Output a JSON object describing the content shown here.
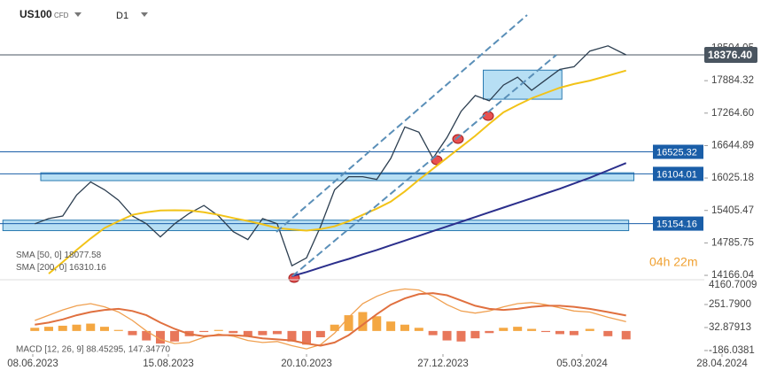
{
  "header": {
    "symbol": "US100",
    "kind": "CFD",
    "timeframe": "D1"
  },
  "countdown": "04h 22m",
  "chart_data": [
    {
      "type": "line",
      "x": [
        "2023-06-09",
        "2023-06-16",
        "2023-06-23",
        "2023-06-30",
        "2023-07-07",
        "2023-07-14",
        "2023-07-21",
        "2023-07-28",
        "2023-08-04",
        "2023-08-11",
        "2023-08-18",
        "2023-08-25",
        "2023-09-01",
        "2023-09-08",
        "2023-09-15",
        "2023-09-22",
        "2023-09-29",
        "2023-10-06",
        "2023-10-13",
        "2023-10-20",
        "2023-10-27",
        "2023-11-03",
        "2023-11-10",
        "2023-11-17",
        "2023-11-24",
        "2023-12-01",
        "2023-12-08",
        "2023-12-15",
        "2023-12-22",
        "2023-12-29",
        "2024-01-05",
        "2024-01-12",
        "2024-01-19",
        "2024-01-26",
        "2024-02-02",
        "2024-02-09",
        "2024-02-16",
        "2024-02-23",
        "2024-03-01",
        "2024-03-08",
        "2024-03-15",
        "2024-03-22"
      ],
      "series": [
        {
          "color": "#2c3e50",
          "values": [
            15150,
            15250,
            15300,
            15700,
            15950,
            15800,
            15600,
            15300,
            15150,
            14900,
            15150,
            15350,
            15500,
            15300,
            15000,
            14850,
            15250,
            15150,
            14350,
            14500,
            15100,
            15800,
            16050,
            16050,
            16000,
            16400,
            17000,
            16900,
            16400,
            16800,
            17300,
            17600,
            17500,
            17800,
            17950,
            17700,
            17900,
            18100,
            18150,
            18450,
            18550,
            18376.4
          ]
        },
        {
          "name": "SMA [50, 0]",
          "color": "#f2c318",
          "values": [
            null,
            14199,
            14420,
            14651,
            14870,
            15070,
            15200,
            15321,
            15370,
            15405,
            15410,
            15405,
            15370,
            15321,
            15260,
            15204,
            15140,
            15070,
            15040,
            15020,
            15050,
            15104,
            15200,
            15321,
            15440,
            15573,
            15770,
            15991,
            16200,
            16410,
            16620,
            16829,
            17060,
            17281,
            17420,
            17549,
            17650,
            17750,
            17820,
            17884,
            17980,
            18077.58
          ]
        },
        {
          "name": "SMA [200, 0]",
          "color": "#2b2f8c",
          "values": [
            null,
            null,
            null,
            null,
            null,
            null,
            null,
            null,
            null,
            null,
            null,
            null,
            null,
            null,
            null,
            null,
            null,
            null,
            14150,
            14230,
            14316,
            14400,
            14480,
            14568,
            14650,
            14740,
            14830,
            14920,
            15010,
            15100,
            15190,
            15280,
            15370,
            15460,
            15550,
            15640,
            15730,
            15820,
            15920,
            16030,
            16170,
            16310.16
          ]
        }
      ],
      "ylim": [
        14099,
        19425
      ],
      "yticks": [
        {
          "value": 18504.05,
          "label": "18504.05"
        },
        {
          "value": 17884.32,
          "label": "17884.32"
        },
        {
          "value": 17264.6,
          "label": "17264.60"
        },
        {
          "value": 16644.89,
          "label": "16644.89"
        },
        {
          "value": 16025.18,
          "label": "16025.18"
        },
        {
          "value": 15405.47,
          "label": "15405.47"
        },
        {
          "value": 14785.75,
          "label": "14785.75"
        },
        {
          "value": 14166.04,
          "label": "14166.04"
        }
      ],
      "xlim": [
        "2023-05-24",
        "2024-05-16"
      ],
      "xticks": [
        {
          "value": "2023-06-08",
          "label": "08.06.2023"
        },
        {
          "value": "2023-08-15",
          "label": "15.08.2023"
        },
        {
          "value": "2023-10-20",
          "label": "20.10.2023"
        },
        {
          "value": "2023-12-27",
          "label": "27.12.2023"
        },
        {
          "value": "2024-03-05",
          "label": "05.03.2024"
        },
        {
          "value": "2024-04-28",
          "label": "28.04.2024"
        }
      ],
      "current_price": {
        "value": 18376.4,
        "label": "18376.40",
        "color": "#4a5560"
      },
      "levels": [
        {
          "value": 16525.32,
          "label": "16525.32"
        },
        {
          "value": 16104.01,
          "label": "16104.01"
        },
        {
          "value": 15154.16,
          "label": "15154.16"
        }
      ],
      "level_color": "#1a5ea8",
      "zones": [
        {
          "from": "2023-06-12",
          "to": "2024-03-25",
          "range": [
            15975,
            16125
          ]
        },
        {
          "from": "2023-05-24",
          "to": "2024-03-23",
          "range": [
            15020,
            15220
          ]
        },
        {
          "from": "2024-01-16",
          "to": "2024-02-24",
          "range": [
            17530,
            18085
          ]
        }
      ],
      "zone_color": "#9fd4f0"
    },
    {
      "type": "line",
      "top_label": "4160.7009",
      "legend": "MACD [12, 26, 9] 88.45295, 147.34770",
      "series": [
        {
          "color": "#f0a050",
          "values": [
            100,
            150,
            200,
            240,
            260,
            230,
            180,
            100,
            0,
            -80,
            -120,
            -110,
            -60,
            -30,
            -50,
            -90,
            -110,
            -100,
            -140,
            -170,
            -130,
            -20,
            130,
            260,
            330,
            380,
            400,
            390,
            330,
            250,
            190,
            170,
            190,
            230,
            260,
            270,
            250,
            220,
            190,
            180,
            130,
            88.45295
          ]
        },
        {
          "color": "#e0703f",
          "values": [
            60,
            80,
            110,
            150,
            180,
            200,
            210,
            190,
            150,
            80,
            20,
            -30,
            -50,
            -40,
            -40,
            -50,
            -70,
            -80,
            -90,
            -120,
            -140,
            -110,
            -40,
            60,
            160,
            250,
            310,
            350,
            360,
            340,
            290,
            240,
            210,
            200,
            210,
            230,
            240,
            240,
            230,
            210,
            180,
            147.3477
          ]
        }
      ],
      "histogram": {
        "colors": [
          "#f4a742",
          "#e8775a"
        ],
        "values": [
          30,
          40,
          50,
          60,
          70,
          40,
          10,
          -40,
          -90,
          -120,
          -100,
          -50,
          -10,
          10,
          -20,
          -50,
          -40,
          -30,
          -100,
          -130,
          -60,
          60,
          150,
          180,
          140,
          90,
          60,
          30,
          -40,
          -90,
          -100,
          -70,
          -20,
          30,
          40,
          20,
          -10,
          -30,
          -40,
          20,
          -50,
          -80
        ]
      },
      "ylim": [
        -220,
        479
      ],
      "yticks": [
        {
          "value": 251.79,
          "label": "251.7900"
        },
        32.87913,
        -186.0381
      ]
    }
  ]
}
